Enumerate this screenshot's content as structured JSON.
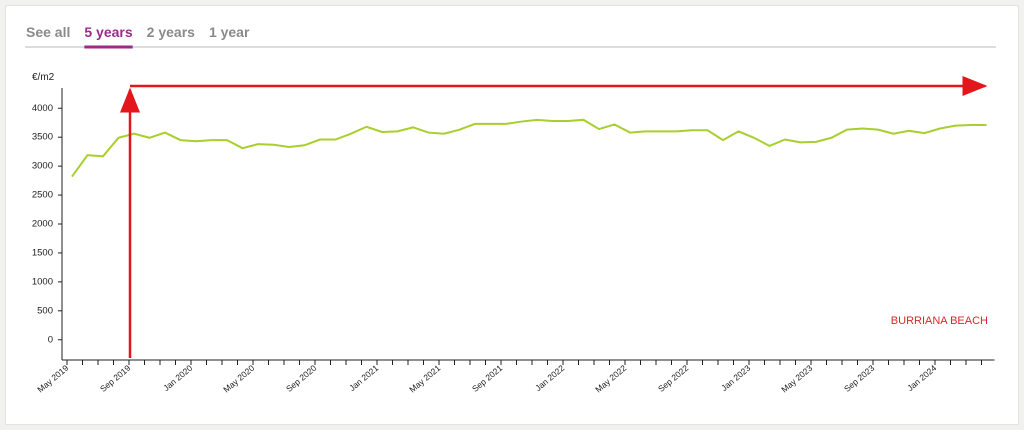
{
  "tabs": {
    "items": [
      "See all",
      "5 years",
      "2 years",
      "1 year"
    ],
    "active": 1
  },
  "chart_data": {
    "type": "line",
    "ylabel": "€/m2",
    "annotation": "BURRIANA BEACH",
    "color": "#a8cf2e",
    "categories": [
      "May 2019",
      null,
      null,
      null,
      "Sep 2019",
      null,
      null,
      null,
      "Jan 2020",
      null,
      null,
      null,
      "May 2020",
      null,
      null,
      null,
      "Sep 2020",
      null,
      null,
      null,
      "Jan 2021",
      null,
      null,
      null,
      "May 2021",
      null,
      null,
      null,
      "Sep 2021",
      null,
      null,
      null,
      "Jan 2022",
      null,
      null,
      null,
      "May 2022",
      null,
      null,
      null,
      "Sep 2022",
      null,
      null,
      null,
      "Jan 2023",
      null,
      null,
      null,
      "May 2023",
      null,
      null,
      null,
      "Sep 2023",
      null,
      null,
      null,
      "Jan 2024",
      null,
      null,
      null
    ],
    "values": [
      2820,
      3190,
      3170,
      3490,
      3560,
      3490,
      3580,
      3450,
      3430,
      3450,
      3450,
      3310,
      3380,
      3370,
      3330,
      3360,
      3460,
      3460,
      3560,
      3680,
      3590,
      3600,
      3670,
      3580,
      3560,
      3630,
      3730,
      3730,
      3730,
      3770,
      3800,
      3780,
      3780,
      3800,
      3640,
      3720,
      3580,
      3600,
      3600,
      3600,
      3620,
      3620,
      3450,
      3600,
      3490,
      3350,
      3460,
      3410,
      3420,
      3490,
      3630,
      3650,
      3630,
      3560,
      3610,
      3570,
      3650,
      3700,
      3710,
      3710
    ],
    "ylim": [
      -350,
      4350
    ],
    "yticks": [
      0,
      500,
      1000,
      1500,
      2000,
      2500,
      3000,
      3500,
      4000
    ]
  }
}
